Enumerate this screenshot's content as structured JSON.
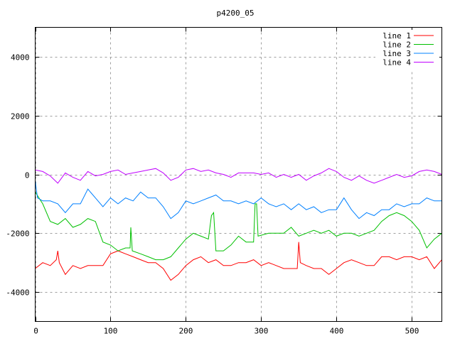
{
  "chart_data": {
    "type": "line",
    "title": "p4200_05",
    "xlabel": "",
    "ylabel": "",
    "xlim": [
      0,
      540
    ],
    "ylim": [
      -5000,
      5000
    ],
    "xticks": [
      0,
      100,
      200,
      300,
      400,
      500
    ],
    "yticks": [
      -4000,
      -2000,
      0,
      2000,
      4000
    ],
    "grid": true,
    "legend_position": "top-right",
    "series": [
      {
        "name": "line 1",
        "color": "#ff0000",
        "points": [
          [
            0,
            -3200
          ],
          [
            10,
            -3000
          ],
          [
            20,
            -3100
          ],
          [
            28,
            -2900
          ],
          [
            30,
            -2600
          ],
          [
            32,
            -3000
          ],
          [
            40,
            -3400
          ],
          [
            50,
            -3100
          ],
          [
            60,
            -3200
          ],
          [
            70,
            -3100
          ],
          [
            80,
            -3100
          ],
          [
            90,
            -3100
          ],
          [
            100,
            -2700
          ],
          [
            110,
            -2600
          ],
          [
            120,
            -2700
          ],
          [
            130,
            -2800
          ],
          [
            140,
            -2900
          ],
          [
            150,
            -3000
          ],
          [
            160,
            -3000
          ],
          [
            170,
            -3200
          ],
          [
            180,
            -3600
          ],
          [
            190,
            -3400
          ],
          [
            200,
            -3100
          ],
          [
            210,
            -2900
          ],
          [
            220,
            -2800
          ],
          [
            230,
            -3000
          ],
          [
            240,
            -2900
          ],
          [
            250,
            -3100
          ],
          [
            260,
            -3100
          ],
          [
            270,
            -3000
          ],
          [
            280,
            -3000
          ],
          [
            290,
            -2900
          ],
          [
            300,
            -3100
          ],
          [
            310,
            -3000
          ],
          [
            320,
            -3100
          ],
          [
            330,
            -3200
          ],
          [
            340,
            -3200
          ],
          [
            348,
            -3200
          ],
          [
            350,
            -2300
          ],
          [
            352,
            -3000
          ],
          [
            360,
            -3100
          ],
          [
            370,
            -3200
          ],
          [
            380,
            -3200
          ],
          [
            390,
            -3400
          ],
          [
            400,
            -3200
          ],
          [
            410,
            -3000
          ],
          [
            420,
            -2900
          ],
          [
            430,
            -3000
          ],
          [
            440,
            -3100
          ],
          [
            450,
            -3100
          ],
          [
            460,
            -2800
          ],
          [
            470,
            -2800
          ],
          [
            480,
            -2900
          ],
          [
            490,
            -2800
          ],
          [
            500,
            -2800
          ],
          [
            510,
            -2900
          ],
          [
            520,
            -2800
          ],
          [
            530,
            -3200
          ],
          [
            540,
            -2900
          ]
        ]
      },
      {
        "name": "line 2",
        "color": "#00c000",
        "points": [
          [
            0,
            -600
          ],
          [
            10,
            -1000
          ],
          [
            20,
            -1600
          ],
          [
            30,
            -1700
          ],
          [
            40,
            -1500
          ],
          [
            50,
            -1800
          ],
          [
            60,
            -1700
          ],
          [
            70,
            -1500
          ],
          [
            80,
            -1600
          ],
          [
            90,
            -2300
          ],
          [
            100,
            -2400
          ],
          [
            110,
            -2600
          ],
          [
            120,
            -2500
          ],
          [
            126,
            -2500
          ],
          [
            127,
            -1800
          ],
          [
            129,
            -2600
          ],
          [
            140,
            -2700
          ],
          [
            150,
            -2800
          ],
          [
            160,
            -2900
          ],
          [
            170,
            -2900
          ],
          [
            180,
            -2800
          ],
          [
            190,
            -2500
          ],
          [
            200,
            -2200
          ],
          [
            210,
            -2000
          ],
          [
            220,
            -2100
          ],
          [
            230,
            -2200
          ],
          [
            234,
            -1400
          ],
          [
            237,
            -1300
          ],
          [
            240,
            -2600
          ],
          [
            250,
            -2600
          ],
          [
            260,
            -2400
          ],
          [
            270,
            -2100
          ],
          [
            280,
            -2300
          ],
          [
            290,
            -2300
          ],
          [
            292,
            -1000
          ],
          [
            294,
            -1000
          ],
          [
            296,
            -2100
          ],
          [
            310,
            -2000
          ],
          [
            320,
            -2000
          ],
          [
            330,
            -2000
          ],
          [
            340,
            -1800
          ],
          [
            350,
            -2100
          ],
          [
            360,
            -2000
          ],
          [
            370,
            -1900
          ],
          [
            380,
            -2000
          ],
          [
            390,
            -1900
          ],
          [
            400,
            -2100
          ],
          [
            410,
            -2000
          ],
          [
            420,
            -2000
          ],
          [
            430,
            -2100
          ],
          [
            440,
            -2000
          ],
          [
            450,
            -1900
          ],
          [
            460,
            -1600
          ],
          [
            470,
            -1400
          ],
          [
            480,
            -1300
          ],
          [
            490,
            -1400
          ],
          [
            500,
            -1600
          ],
          [
            510,
            -1900
          ],
          [
            520,
            -2500
          ],
          [
            530,
            -2200
          ],
          [
            540,
            -2000
          ]
        ]
      },
      {
        "name": "line 3",
        "color": "#0080ff",
        "points": [
          [
            0,
            -200
          ],
          [
            3,
            -800
          ],
          [
            10,
            -900
          ],
          [
            20,
            -900
          ],
          [
            30,
            -1000
          ],
          [
            40,
            -1300
          ],
          [
            50,
            -1000
          ],
          [
            60,
            -1000
          ],
          [
            70,
            -500
          ],
          [
            80,
            -800
          ],
          [
            90,
            -1100
          ],
          [
            100,
            -800
          ],
          [
            110,
            -1000
          ],
          [
            120,
            -800
          ],
          [
            130,
            -900
          ],
          [
            140,
            -600
          ],
          [
            150,
            -800
          ],
          [
            160,
            -800
          ],
          [
            170,
            -1100
          ],
          [
            180,
            -1500
          ],
          [
            190,
            -1300
          ],
          [
            200,
            -900
          ],
          [
            210,
            -1000
          ],
          [
            220,
            -900
          ],
          [
            230,
            -800
          ],
          [
            240,
            -700
          ],
          [
            250,
            -900
          ],
          [
            260,
            -900
          ],
          [
            270,
            -1000
          ],
          [
            280,
            -900
          ],
          [
            290,
            -1000
          ],
          [
            300,
            -800
          ],
          [
            310,
            -1000
          ],
          [
            320,
            -1100
          ],
          [
            330,
            -1000
          ],
          [
            340,
            -1200
          ],
          [
            350,
            -1000
          ],
          [
            360,
            -1200
          ],
          [
            370,
            -1100
          ],
          [
            380,
            -1300
          ],
          [
            390,
            -1200
          ],
          [
            400,
            -1200
          ],
          [
            410,
            -800
          ],
          [
            420,
            -1200
          ],
          [
            430,
            -1500
          ],
          [
            440,
            -1300
          ],
          [
            450,
            -1400
          ],
          [
            460,
            -1200
          ],
          [
            470,
            -1200
          ],
          [
            480,
            -1000
          ],
          [
            490,
            -1100
          ],
          [
            500,
            -1000
          ],
          [
            510,
            -1000
          ],
          [
            520,
            -800
          ],
          [
            530,
            -900
          ],
          [
            540,
            -900
          ]
        ]
      },
      {
        "name": "line 4",
        "color": "#c000ff",
        "points": [
          [
            0,
            150
          ],
          [
            10,
            100
          ],
          [
            20,
            -50
          ],
          [
            30,
            -300
          ],
          [
            40,
            50
          ],
          [
            50,
            -100
          ],
          [
            60,
            -200
          ],
          [
            70,
            100
          ],
          [
            80,
            -50
          ],
          [
            90,
            0
          ],
          [
            100,
            100
          ],
          [
            110,
            150
          ],
          [
            120,
            0
          ],
          [
            130,
            50
          ],
          [
            140,
            100
          ],
          [
            150,
            150
          ],
          [
            160,
            200
          ],
          [
            170,
            50
          ],
          [
            180,
            -200
          ],
          [
            190,
            -100
          ],
          [
            200,
            150
          ],
          [
            210,
            200
          ],
          [
            220,
            100
          ],
          [
            230,
            150
          ],
          [
            240,
            50
          ],
          [
            250,
            0
          ],
          [
            260,
            -100
          ],
          [
            270,
            50
          ],
          [
            280,
            50
          ],
          [
            290,
            50
          ],
          [
            300,
            0
          ],
          [
            310,
            50
          ],
          [
            320,
            -100
          ],
          [
            330,
            0
          ],
          [
            340,
            -100
          ],
          [
            350,
            0
          ],
          [
            360,
            -200
          ],
          [
            370,
            -50
          ],
          [
            380,
            50
          ],
          [
            390,
            200
          ],
          [
            400,
            100
          ],
          [
            410,
            -100
          ],
          [
            420,
            -200
          ],
          [
            430,
            -50
          ],
          [
            440,
            -200
          ],
          [
            450,
            -300
          ],
          [
            460,
            -200
          ],
          [
            470,
            -100
          ],
          [
            480,
            0
          ],
          [
            490,
            -100
          ],
          [
            500,
            -50
          ],
          [
            510,
            100
          ],
          [
            520,
            150
          ],
          [
            530,
            100
          ],
          [
            540,
            0
          ]
        ]
      }
    ]
  }
}
